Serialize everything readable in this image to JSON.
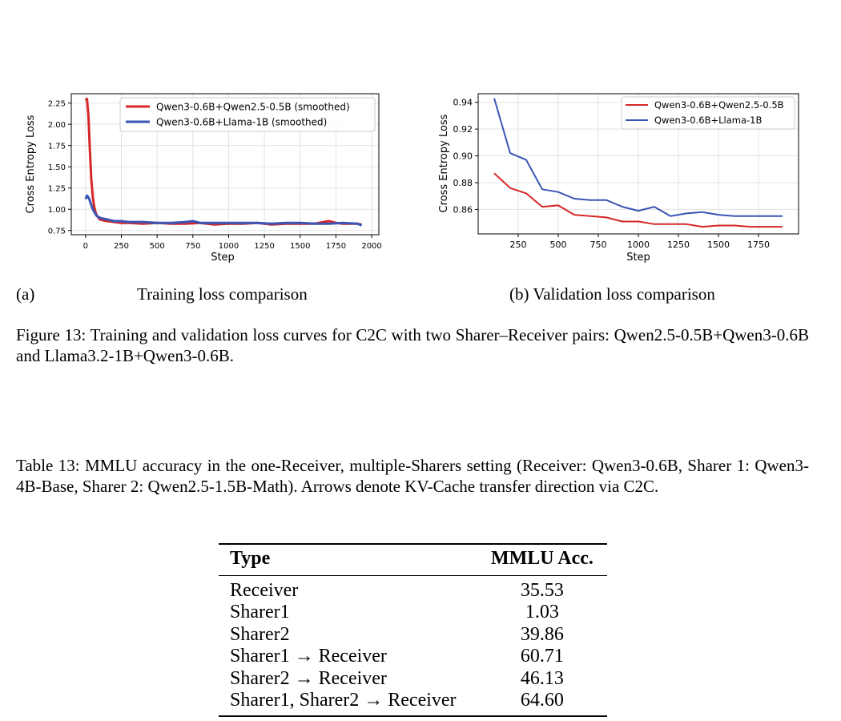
{
  "charts": {
    "train": {
      "ylabel": "Cross Entropy Loss",
      "xlabel": "Step",
      "yticks": [
        "2.25",
        "2.00",
        "1.75",
        "1.50",
        "1.25",
        "1.00",
        "0.75"
      ],
      "xticks": [
        "0",
        "250",
        "500",
        "750",
        "1000",
        "1250",
        "1500",
        "1750",
        "2000"
      ],
      "legend": [
        "Qwen3-0.6B+Qwen2.5-0.5B (smoothed)",
        "Qwen3-0.6B+Llama-1B (smoothed)"
      ]
    },
    "val": {
      "ylabel": "Cross Entropy Loss",
      "xlabel": "Step",
      "yticks": [
        "0.94",
        "0.92",
        "0.90",
        "0.88",
        "0.86"
      ],
      "xticks": [
        "250",
        "500",
        "750",
        "1000",
        "1250",
        "1500",
        "1750"
      ],
      "legend": [
        "Qwen3-0.6B+Qwen2.5-0.5B",
        "Qwen3-0.6B+Llama-1B"
      ]
    }
  },
  "chart_data": [
    {
      "type": "line",
      "xlabel": "Step",
      "ylabel": "Cross Entropy Loss",
      "xlim": [
        -100,
        2050
      ],
      "ylim": [
        0.7,
        2.36
      ],
      "grid": true,
      "legend_position": "top-right",
      "colors": [
        "#d62728",
        "#3b55b4"
      ],
      "series": [
        {
          "name": "Qwen3-0.6B+Qwen2.5-0.5B (smoothed)",
          "x": [
            0,
            10,
            20,
            30,
            40,
            50,
            60,
            70,
            80,
            100,
            120,
            150,
            200,
            250,
            300,
            400,
            500,
            600,
            700,
            800,
            900,
            1000,
            1100,
            1200,
            1300,
            1400,
            1500,
            1600,
            1700,
            1750,
            1800,
            1900,
            1930
          ],
          "y": [
            2.28,
            2.3,
            2.1,
            1.7,
            1.35,
            1.15,
            1.03,
            0.96,
            0.92,
            0.88,
            0.87,
            0.86,
            0.85,
            0.84,
            0.84,
            0.83,
            0.84,
            0.83,
            0.83,
            0.84,
            0.82,
            0.83,
            0.83,
            0.84,
            0.82,
            0.83,
            0.83,
            0.83,
            0.86,
            0.84,
            0.83,
            0.83,
            0.82
          ]
        },
        {
          "name": "Qwen3-0.6B+Llama-1B (smoothed)",
          "x": [
            0,
            10,
            20,
            30,
            40,
            50,
            60,
            70,
            80,
            100,
            120,
            150,
            200,
            250,
            300,
            400,
            500,
            600,
            700,
            750,
            800,
            900,
            1000,
            1100,
            1200,
            1300,
            1400,
            1500,
            1600,
            1700,
            1800,
            1900,
            1930
          ],
          "y": [
            1.12,
            1.16,
            1.14,
            1.1,
            1.05,
            1.0,
            0.97,
            0.94,
            0.92,
            0.9,
            0.89,
            0.88,
            0.86,
            0.86,
            0.85,
            0.85,
            0.84,
            0.84,
            0.85,
            0.86,
            0.84,
            0.84,
            0.84,
            0.84,
            0.84,
            0.83,
            0.84,
            0.84,
            0.83,
            0.83,
            0.84,
            0.83,
            0.81
          ]
        }
      ]
    },
    {
      "type": "line",
      "xlabel": "Step",
      "ylabel": "Cross Entropy Loss",
      "xlim": [
        0,
        2000
      ],
      "ylim": [
        0.8417,
        0.9464
      ],
      "grid": true,
      "legend_position": "top-right",
      "colors": [
        "#d62728",
        "#3b55b4"
      ],
      "series": [
        {
          "name": "Qwen3-0.6B+Qwen2.5-0.5B",
          "x": [
            100,
            200,
            300,
            400,
            500,
            600,
            700,
            800,
            900,
            1000,
            1100,
            1200,
            1300,
            1400,
            1500,
            1600,
            1700,
            1800,
            1900
          ],
          "y": [
            0.887,
            0.876,
            0.872,
            0.862,
            0.863,
            0.856,
            0.855,
            0.854,
            0.851,
            0.851,
            0.849,
            0.849,
            0.849,
            0.847,
            0.848,
            0.848,
            0.847,
            0.847,
            0.847
          ]
        },
        {
          "name": "Qwen3-0.6B+Llama-1B",
          "x": [
            100,
            200,
            300,
            400,
            500,
            600,
            700,
            800,
            900,
            1000,
            1100,
            1200,
            1300,
            1400,
            1500,
            1600,
            1700,
            1800,
            1900
          ],
          "y": [
            0.943,
            0.902,
            0.897,
            0.875,
            0.873,
            0.868,
            0.867,
            0.867,
            0.862,
            0.859,
            0.862,
            0.855,
            0.857,
            0.858,
            0.856,
            0.855,
            0.855,
            0.855,
            0.855
          ]
        }
      ]
    }
  ],
  "figure": {
    "subcaption_a_label": "(a)",
    "subcaption_a_text": "Training loss comparison",
    "subcaption_b": "(b) Validation loss comparison",
    "caption": "Figure 13: Training and validation loss curves for C2C with two Sharer–Receiver pairs: Qwen2.5-0.5B+Qwen3-0.6B and Llama3.2-1B+Qwen3-0.6B."
  },
  "table": {
    "caption": "Table 13: MMLU accuracy in the one-Receiver, multiple-Sharers setting (Receiver: Qwen3-0.6B, Sharer 1: Qwen3-4B-Base, Sharer 2: Qwen2.5-1.5B-Math). Arrows denote KV-Cache transfer direction via C2C.",
    "headers": [
      "Type",
      "MMLU Acc."
    ],
    "rows": [
      [
        "Receiver",
        "35.53"
      ],
      [
        "Sharer1",
        "1.03"
      ],
      [
        "Sharer2",
        "39.86"
      ],
      [
        "Sharer1 → Receiver",
        "60.71"
      ],
      [
        "Sharer2 → Receiver",
        "46.13"
      ],
      [
        "Sharer1, Sharer2 → Receiver",
        "64.60"
      ]
    ]
  }
}
